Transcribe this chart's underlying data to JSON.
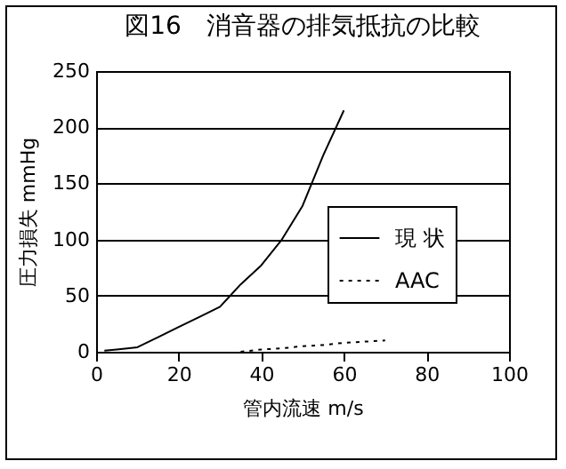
{
  "chart_data": {
    "type": "line",
    "title": "図16　消音器の排気抵抗の比較",
    "xlabel": "管内流速 m/s",
    "ylabel": "圧力損失 mmHg",
    "xlim": [
      0,
      100
    ],
    "xticks": [
      0,
      20,
      40,
      60,
      80,
      100
    ],
    "ylim": [
      0,
      250
    ],
    "yticks": [
      0,
      50,
      100,
      150,
      200,
      250
    ],
    "grid": "y",
    "legend": "right",
    "marker": "none",
    "series": [
      {
        "name": "現 状",
        "color": "#000000",
        "line_style": "solid",
        "x": [
          2,
          5,
          10,
          15,
          20,
          25,
          30,
          35,
          40,
          45,
          50,
          55,
          60
        ],
        "values": [
          1,
          2,
          4,
          13,
          22,
          31,
          40,
          60,
          77,
          100,
          130,
          175,
          215
        ]
      },
      {
        "name": "AAC",
        "color": "#000000",
        "line_style": "dotted",
        "x": [
          35,
          40,
          45,
          50,
          55,
          60,
          65,
          70
        ],
        "values": [
          0,
          2,
          3,
          5,
          6,
          8,
          9,
          10
        ]
      }
    ]
  }
}
